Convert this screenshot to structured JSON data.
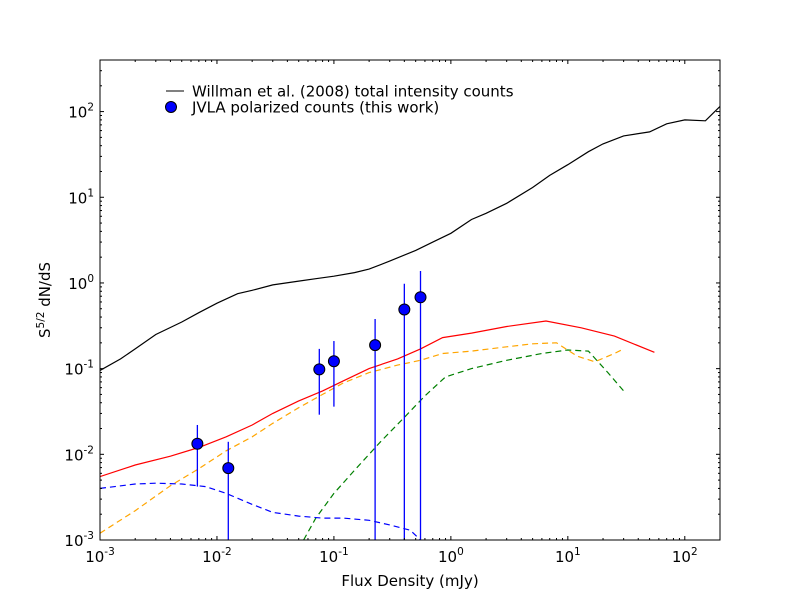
{
  "chart_data": {
    "type": "line",
    "xscale": "log",
    "yscale": "log",
    "xlim": [
      0.001,
      200
    ],
    "ylim": [
      0.001,
      400
    ],
    "xlabel": "Flux Density (mJy)",
    "ylabel_parts": {
      "pre": "S",
      "sup": "5/2",
      "post": " dN/dS"
    },
    "x_tick_labels": [
      {
        "value": 0.001,
        "base": "10",
        "exp": "-3"
      },
      {
        "value": 0.01,
        "base": "10",
        "exp": "-2"
      },
      {
        "value": 0.1,
        "base": "10",
        "exp": "-1"
      },
      {
        "value": 1,
        "base": "10",
        "exp": "0"
      },
      {
        "value": 10,
        "base": "10",
        "exp": "1"
      },
      {
        "value": 100,
        "base": "10",
        "exp": "2"
      }
    ],
    "y_tick_labels": [
      {
        "value": 0.001,
        "base": "10",
        "exp": "-3"
      },
      {
        "value": 0.01,
        "base": "10",
        "exp": "-2"
      },
      {
        "value": 0.1,
        "base": "10",
        "exp": "-1"
      },
      {
        "value": 1,
        "base": "10",
        "exp": "0"
      },
      {
        "value": 10,
        "base": "10",
        "exp": "1"
      },
      {
        "value": 100,
        "base": "10",
        "exp": "2"
      }
    ],
    "legend": {
      "position": "top-left",
      "entries": [
        {
          "label": "Willman et al. (2008) total intensity counts",
          "marker": "line",
          "color": "#000000"
        },
        {
          "label": "JVLA polarized counts (this work)",
          "marker": "circle",
          "color": "#0000ff"
        }
      ]
    },
    "series": [
      {
        "name": "Willman et al. (2008) total intensity counts",
        "style": "solid",
        "color": "#000000",
        "x": [
          0.001,
          0.0015,
          0.002,
          0.003,
          0.005,
          0.007,
          0.01,
          0.015,
          0.02,
          0.03,
          0.05,
          0.07,
          0.1,
          0.15,
          0.2,
          0.3,
          0.5,
          0.7,
          1.0,
          1.5,
          2,
          3,
          5,
          7,
          10,
          15,
          20,
          30,
          50,
          70,
          100,
          150,
          200
        ],
        "y": [
          0.095,
          0.13,
          0.17,
          0.25,
          0.35,
          0.45,
          0.58,
          0.75,
          0.82,
          0.95,
          1.05,
          1.12,
          1.2,
          1.32,
          1.45,
          1.8,
          2.4,
          3.0,
          3.8,
          5.5,
          6.5,
          8.5,
          13,
          18,
          24,
          34,
          42,
          52,
          58,
          72,
          80,
          78,
          115
        ]
      },
      {
        "name": "model total polarized counts",
        "style": "solid",
        "color": "#ff0000",
        "x": [
          0.001,
          0.002,
          0.004,
          0.007,
          0.012,
          0.02,
          0.03,
          0.05,
          0.08,
          0.12,
          0.2,
          0.35,
          0.55,
          0.85,
          1.5,
          3,
          6.5,
          13,
          25,
          55
        ],
        "y": [
          0.0055,
          0.0075,
          0.0095,
          0.012,
          0.016,
          0.022,
          0.03,
          0.042,
          0.055,
          0.072,
          0.1,
          0.13,
          0.17,
          0.23,
          0.26,
          0.31,
          0.36,
          0.3,
          0.24,
          0.155
        ]
      },
      {
        "name": "model component (orange)",
        "style": "dashed",
        "color": "#ffa500",
        "x": [
          0.001,
          0.002,
          0.004,
          0.007,
          0.012,
          0.02,
          0.03,
          0.05,
          0.08,
          0.12,
          0.2,
          0.35,
          0.55,
          0.85,
          1.5,
          3,
          5,
          8,
          12,
          17,
          25,
          30
        ],
        "y": [
          0.0012,
          0.0022,
          0.0043,
          0.0068,
          0.011,
          0.016,
          0.023,
          0.035,
          0.05,
          0.068,
          0.09,
          0.11,
          0.125,
          0.15,
          0.16,
          0.18,
          0.195,
          0.2,
          0.14,
          0.12,
          0.15,
          0.17
        ]
      },
      {
        "name": "model component (green)",
        "style": "dashed",
        "color": "#008000",
        "x": [
          0.055,
          0.07,
          0.1,
          0.15,
          0.25,
          0.4,
          0.6,
          0.9,
          1.5,
          3,
          6,
          10,
          15,
          22,
          30
        ],
        "y": [
          0.001,
          0.0018,
          0.0035,
          0.0065,
          0.014,
          0.027,
          0.048,
          0.08,
          0.1,
          0.125,
          0.15,
          0.165,
          0.16,
          0.09,
          0.055
        ]
      },
      {
        "name": "model component (blue)",
        "style": "dashed",
        "color": "#0000ff",
        "x": [
          0.001,
          0.002,
          0.003,
          0.005,
          0.008,
          0.012,
          0.02,
          0.03,
          0.05,
          0.08,
          0.12,
          0.2,
          0.3,
          0.45,
          0.55
        ],
        "y": [
          0.004,
          0.0045,
          0.0046,
          0.0045,
          0.0042,
          0.0035,
          0.0026,
          0.0021,
          0.0019,
          0.0018,
          0.0018,
          0.0017,
          0.0015,
          0.0013,
          0.001
        ]
      }
    ],
    "points": {
      "name": "JVLA polarized counts (this work)",
      "color": "#0000ff",
      "data": [
        {
          "x": 0.0068,
          "y": 0.0133,
          "ylo": 0.0042,
          "yhi": 0.022
        },
        {
          "x": 0.0125,
          "y": 0.0069,
          "ylo": 0.001,
          "yhi": 0.014
        },
        {
          "x": 0.075,
          "y": 0.098,
          "ylo": 0.029,
          "yhi": 0.17
        },
        {
          "x": 0.1,
          "y": 0.122,
          "ylo": 0.036,
          "yhi": 0.21
        },
        {
          "x": 0.225,
          "y": 0.188,
          "ylo": 0.001,
          "yhi": 0.38
        },
        {
          "x": 0.4,
          "y": 0.49,
          "ylo": 0.001,
          "yhi": 0.98
        },
        {
          "x": 0.55,
          "y": 0.68,
          "ylo": 0.001,
          "yhi": 1.38
        }
      ]
    }
  }
}
